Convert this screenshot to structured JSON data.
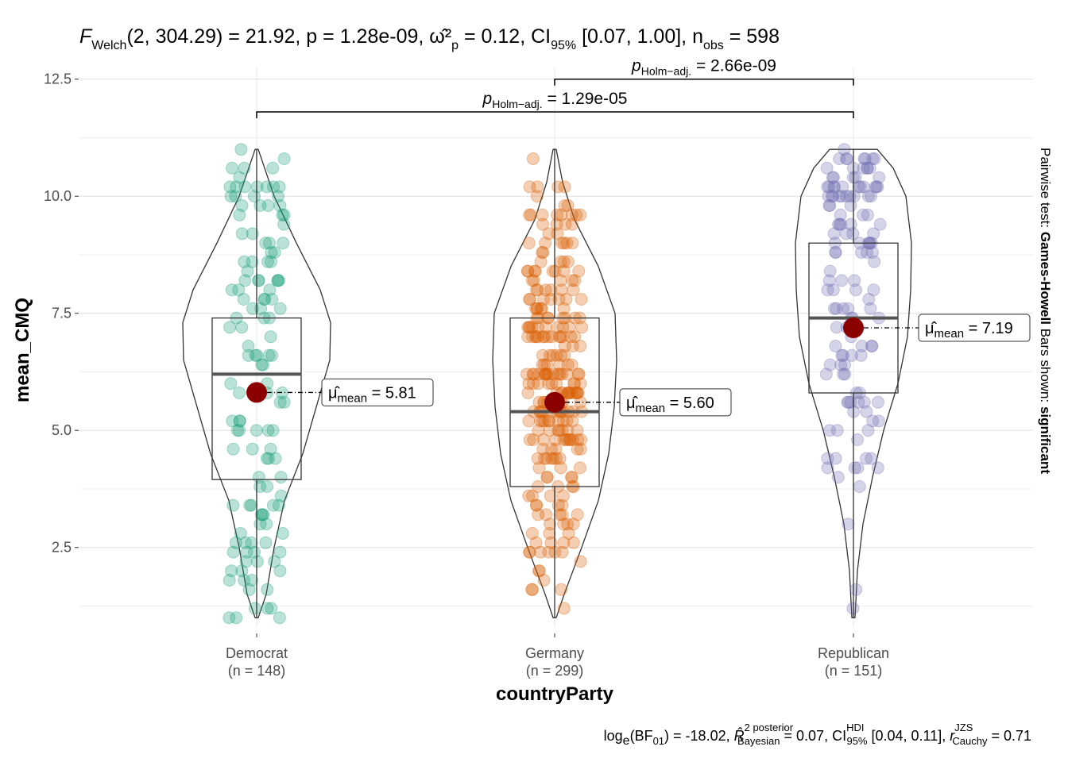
{
  "chart_data": {
    "type": "violin-box-scatter",
    "title_prefix": "F",
    "title_sub": "Welch",
    "title_rest": "(2, 304.29) = 21.92, p = 1.28e-09, ",
    "title_effect": "ω̂²",
    "title_effect_sub": "p",
    "title_effect_val": " = 0.12, CI",
    "title_ci_sub": "95%",
    "title_ci_val": " [0.07, 1.00], n",
    "title_n_sub": "obs",
    "title_n_val": " = 598",
    "xlabel": "countryParty",
    "ylabel": "mean_CMQ",
    "ylim": [
      0.8,
      12.75
    ],
    "yticks": [
      2.5,
      5.0,
      7.5,
      10.0,
      12.5
    ],
    "ytick_labels": [
      "2.5",
      "5.0",
      "7.5",
      "10.0",
      "12.5"
    ],
    "grid": true,
    "groups": [
      {
        "name": "Democrat",
        "n_label": "(n = 148)",
        "color": "#1b9e77",
        "mean": 5.81,
        "mean_label": "5.81",
        "median": 6.2,
        "q1": 3.95,
        "q3": 7.4,
        "min": 1.0,
        "max": 11.0,
        "n": 148
      },
      {
        "name": "Germany",
        "n_label": "(n = 299)",
        "color": "#d95f02",
        "mean": 5.6,
        "mean_label": "5.60",
        "median": 5.4,
        "q1": 3.8,
        "q3": 7.4,
        "min": 1.0,
        "max": 11.0,
        "n": 299
      },
      {
        "name": "Republican",
        "n_label": "(n = 151)",
        "color": "#7570b3",
        "mean": 7.19,
        "mean_label": "7.19",
        "median": 7.4,
        "q1": 5.8,
        "q3": 9.0,
        "min": 1.0,
        "max": 11.0,
        "n": 151
      }
    ],
    "mean_prefix": "μ̂",
    "mean_sub": "mean",
    "pairwise": [
      {
        "from": 1,
        "to": 2,
        "label_p": "p",
        "label_sub": "Holm−adj.",
        "label_val": " = 2.66e-09",
        "y": 12.5
      },
      {
        "from": 0,
        "to": 2,
        "label_p": "p",
        "label_sub": "Holm−adj.",
        "label_val": " = 1.29e-05",
        "y": 11.8
      }
    ],
    "side_label_plain": "Pairwise test: ",
    "side_label_bold1": "Games-Howell",
    "side_label_plain2": " Bars shown: ",
    "side_label_bold2": "significant",
    "caption": {
      "log": "log",
      "log_sub": "e",
      "bf": "(BF",
      "bf_sub": "01",
      "bf_val": ") = -18.02, ",
      "r2": "R̂",
      "r2_sup": "2 posterior",
      "r2_sub": "Bayesian",
      "r2_val": " = 0.07, CI",
      "ci_sup": "HDI",
      "ci_sub": "95%",
      "ci_val": " [0.04, 0.11], ",
      "r": "r",
      "r_sup": "JZS",
      "r_sub": "Cauchy",
      "r_val": " = 0.71"
    },
    "mean_point_color": "#8b0000"
  }
}
